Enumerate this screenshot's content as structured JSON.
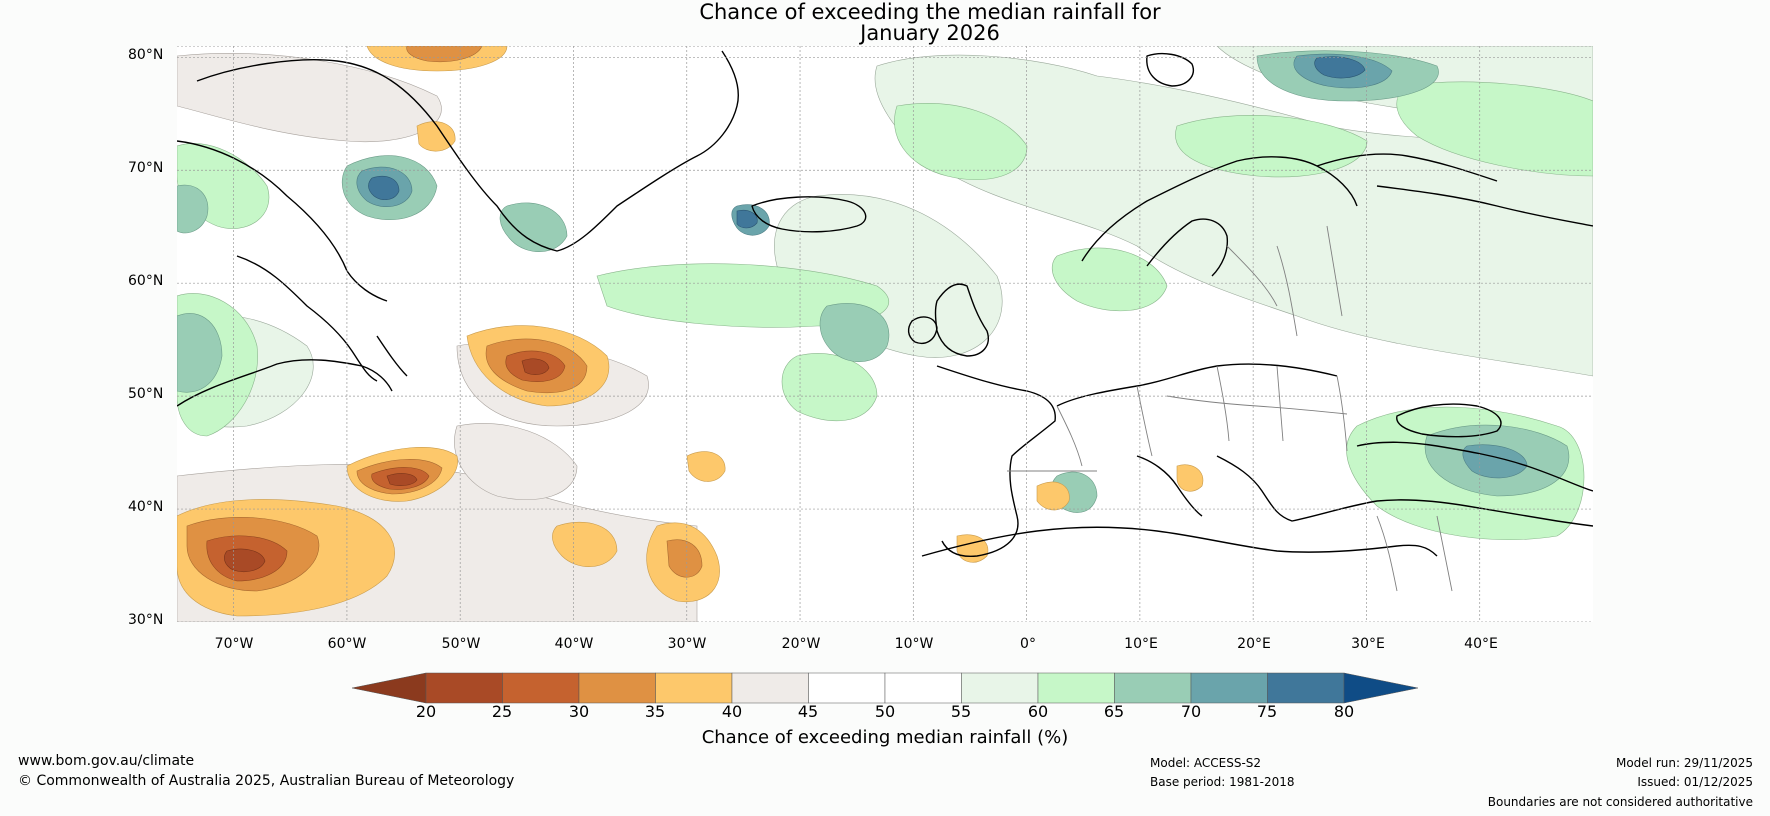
{
  "title": {
    "line1": "Chance of exceeding the median rainfall for",
    "line2": "January 2026"
  },
  "map": {
    "lat_labels": [
      "80°N",
      "70°N",
      "60°N",
      "50°N",
      "40°N",
      "30°N"
    ],
    "lon_labels": [
      "70°W",
      "60°W",
      "50°W",
      "40°W",
      "30°W",
      "20°W",
      "10°W",
      "0°",
      "10°E",
      "20°E",
      "30°E",
      "40°E"
    ],
    "extent": {
      "lon_min": -75,
      "lon_max": 50,
      "lat_min": 30,
      "lat_max": 81
    },
    "background_color": "#ffffff",
    "coast_color": "#000000",
    "border_color": "#808080",
    "grid_color": "#999999"
  },
  "colorbar": {
    "ticks": [
      "20",
      "25",
      "30",
      "35",
      "40",
      "45",
      "50",
      "55",
      "60",
      "65",
      "70",
      "75",
      "80"
    ],
    "under_color": "#8b3a1e",
    "over_color": "#0f4c86",
    "colors": [
      "#a94a26",
      "#c5622f",
      "#df9143",
      "#fdc86b",
      "#efebe8",
      "#ffffff",
      "#ffffff",
      "#e8f5e8",
      "#c6f7c8",
      "#99cdb5",
      "#6aa4ab",
      "#40779a"
    ],
    "label": "Chance of exceeding median rainfall (%)"
  },
  "footer": {
    "url": "www.bom.gov.au/climate",
    "copyright": "© Commonwealth of Australia 2025, Australian Bureau of Meteorology",
    "model": "Model: ACCESS-S2",
    "base_period": "Base period: 1981-2018",
    "model_run": "Model run: 29/11/2025",
    "issued": "Issued: 01/12/2025",
    "disclaimer": "Boundaries are not considered authoritative"
  }
}
